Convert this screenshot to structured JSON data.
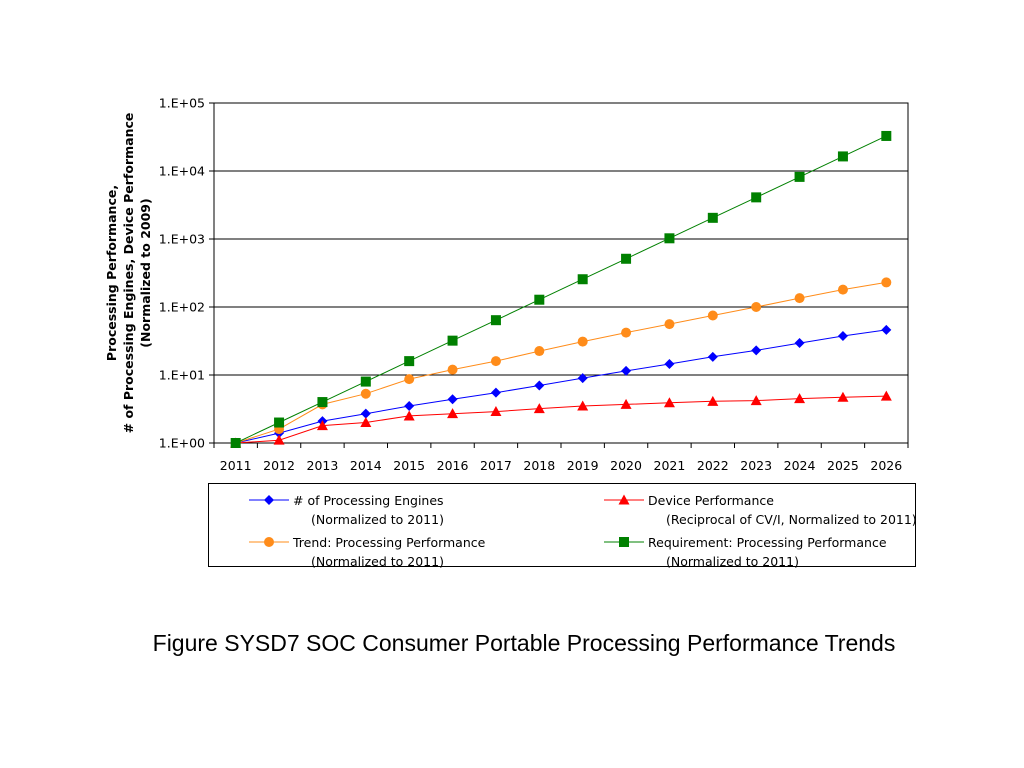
{
  "chart_data": {
    "type": "line",
    "title": "",
    "ylabel_lines": [
      "Processing Performance,",
      "# of Processing Engines, Device Performance",
      "(Normalized to 2009)"
    ],
    "xlabel": "",
    "y_scale": "log",
    "ylim": [
      1,
      100000
    ],
    "y_tick_values": [
      1,
      10,
      100,
      1000,
      10000,
      100000
    ],
    "y_tick_labels": [
      "1.E+00",
      "1.E+01",
      "1.E+02",
      "1.E+03",
      "1.E+04",
      "1.E+05"
    ],
    "grid": "horizontal",
    "legend_position": "bottom",
    "x": [
      "2011",
      "2012",
      "2013",
      "2014",
      "2015",
      "2016",
      "2017",
      "2018",
      "2019",
      "2020",
      "2021",
      "2022",
      "2023",
      "2024",
      "2025",
      "2026"
    ],
    "series": [
      {
        "key": "engines",
        "name_line1": "# of Processing Engines",
        "name_line2": "(Normalized to 2011)",
        "color": "#0000ff",
        "marker": "diamond",
        "values": [
          1,
          1.4,
          2.1,
          2.7,
          3.5,
          4.4,
          5.5,
          7,
          9,
          11.5,
          14.5,
          18.5,
          23,
          29.5,
          37.5,
          46
        ]
      },
      {
        "key": "device",
        "name_line1": "Device Performance",
        "name_line2": "(Reciprocal of CV/I, Normalized to 2011)",
        "color": "#ff0000",
        "marker": "triangle",
        "values": [
          1,
          1.1,
          1.8,
          2.0,
          2.5,
          2.7,
          2.9,
          3.2,
          3.5,
          3.7,
          3.9,
          4.1,
          4.2,
          4.5,
          4.7,
          4.9
        ]
      },
      {
        "key": "trend",
        "name_line1": "Trend: Processing Performance",
        "name_line2": "(Normalized to 2011)",
        "color": "#ff8c1a",
        "marker": "circle",
        "values": [
          1,
          1.6,
          3.7,
          5.3,
          8.7,
          12,
          16,
          22.5,
          31,
          42,
          56,
          75,
          100,
          135,
          180,
          230
        ]
      },
      {
        "key": "requirement",
        "name_line1": "Requirement: Processing Performance",
        "name_line2": "(Normalized to 2011)",
        "color": "#008000",
        "marker": "square",
        "values": [
          1,
          2,
          4,
          8,
          16,
          32,
          64,
          128,
          256,
          512,
          1024,
          2048,
          4096,
          8192,
          16384,
          32768
        ]
      }
    ]
  },
  "caption": "Figure SYSD7  SOC Consumer Portable Processing Performance Trends"
}
